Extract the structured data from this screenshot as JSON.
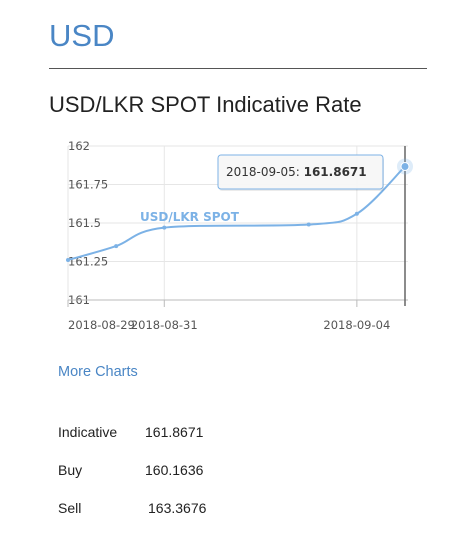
{
  "page": {
    "currency": "USD",
    "section_title": "USD/LKR SPOT Indicative Rate",
    "more_charts": "More Charts"
  },
  "chart_data": {
    "type": "line",
    "series": [
      {
        "name": "USD/LKR SPOT",
        "x": [
          "2018-08-29",
          "2018-08-30",
          "2018-08-31",
          "2018-09-03",
          "2018-09-04",
          "2018-09-05"
        ],
        "values": [
          161.26,
          161.35,
          161.47,
          161.49,
          161.56,
          161.8671
        ],
        "color": "#7cb2e6"
      }
    ],
    "x_tick_labels": [
      "2018-08-29",
      "2018-08-31",
      "2018-09-04"
    ],
    "y_tick_labels": [
      "162",
      "161.75",
      "161.5",
      "161.25",
      "161"
    ],
    "ylim": [
      161,
      162
    ],
    "grid": true,
    "tooltip": {
      "date": "2018-09-05",
      "value": "161.8671"
    }
  },
  "rates": [
    {
      "label": "Indicative",
      "value": "161.8671"
    },
    {
      "label": "Buy",
      "value": "160.1636"
    },
    {
      "label": "Sell",
      "value": "163.3676"
    }
  ]
}
